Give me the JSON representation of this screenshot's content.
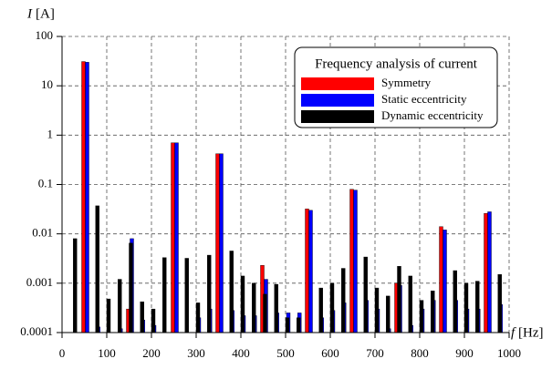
{
  "chart_data": {
    "type": "bar",
    "y_label_symbol": "I",
    "y_label_unit": "[A]",
    "x_label_symbol": "f",
    "x_label_unit": "[Hz]",
    "legend_title": "Frequency analysis of current",
    "legend_position": "upper right",
    "log_y": true,
    "grid": true,
    "xlim": [
      0,
      1000
    ],
    "xticks": [
      0,
      100,
      200,
      300,
      400,
      500,
      600,
      700,
      800,
      900,
      1000
    ],
    "ylim": [
      0.0001,
      100
    ],
    "yticks": [
      0.0001,
      0.001,
      0.01,
      0.1,
      1,
      10,
      100
    ],
    "x": [
      25,
      50,
      75,
      100,
      125,
      150,
      175,
      200,
      225,
      250,
      275,
      300,
      325,
      350,
      375,
      400,
      425,
      450,
      475,
      500,
      525,
      550,
      575,
      600,
      625,
      650,
      675,
      700,
      725,
      750,
      775,
      800,
      825,
      850,
      875,
      900,
      925,
      950,
      975
    ],
    "series": [
      {
        "name": "Symmetry",
        "color": "#ff0000",
        "values": [
          null,
          31,
          null,
          null,
          null,
          0.0003,
          null,
          null,
          null,
          0.7,
          null,
          null,
          null,
          0.42,
          null,
          null,
          null,
          0.0023,
          null,
          null,
          null,
          0.032,
          null,
          null,
          null,
          0.08,
          null,
          null,
          null,
          0.001,
          null,
          null,
          null,
          0.014,
          null,
          null,
          null,
          0.026,
          null
        ]
      },
      {
        "name": "Static eccentricity",
        "color": "#0000ff",
        "values": [
          null,
          30,
          0.00013,
          null,
          0.00012,
          0.008,
          0.00018,
          0.00014,
          null,
          0.7,
          null,
          0.0002,
          0.0003,
          0.42,
          0.00028,
          0.00022,
          0.00022,
          0.0012,
          0.00025,
          0.00025,
          0.00025,
          0.03,
          0.0002,
          0.00028,
          0.0004,
          0.077,
          0.00045,
          0.0003,
          0.00012,
          0.0009,
          0.00014,
          0.0003,
          0.00045,
          0.012,
          0.00045,
          0.0003,
          0.0003,
          0.028,
          0.00037
        ]
      },
      {
        "name": "Dynamic eccentricity",
        "color": "#000000",
        "values": [
          0.008,
          null,
          0.037,
          0.00048,
          0.0012,
          0.0065,
          0.00042,
          0.0003,
          0.0033,
          null,
          0.0032,
          0.0004,
          0.0037,
          null,
          0.0045,
          0.0014,
          0.001,
          0.0006,
          0.00095,
          0.0002,
          0.0002,
          null,
          0.0008,
          0.001,
          0.002,
          null,
          0.0034,
          0.0008,
          0.00055,
          0.0022,
          0.0014,
          0.00045,
          0.0007,
          null,
          0.0018,
          0.001,
          0.0011,
          null,
          0.0015
        ]
      }
    ]
  }
}
